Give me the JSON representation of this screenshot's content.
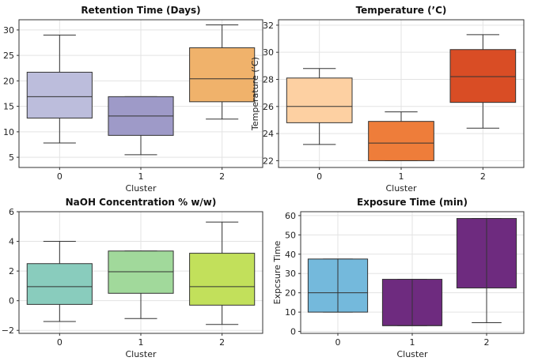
{
  "chart_data": [
    {
      "type": "box",
      "title": "Retention Time (Days)",
      "xlabel": "Cluster",
      "ylabel": "",
      "categories": [
        "0",
        "1",
        "2"
      ],
      "ylim": [
        3,
        32
      ],
      "yticks": [
        5,
        10,
        15,
        20,
        25,
        30
      ],
      "boxes": [
        {
          "whislo": 7.8,
          "q1": 12.7,
          "med": 16.9,
          "q3": 21.7,
          "whishi": 29.0,
          "color": "#bcbddc"
        },
        {
          "whislo": 5.5,
          "q1": 9.3,
          "med": 13.1,
          "q3": 16.9,
          "whishi": 16.9,
          "color": "#9e9ac8"
        },
        {
          "whislo": 12.5,
          "q1": 15.9,
          "med": 20.4,
          "q3": 26.5,
          "whishi": 31.0,
          "color": "#f0b26b"
        }
      ]
    },
    {
      "type": "box",
      "title": "Temperature (’C)",
      "xlabel": "Cluster",
      "ylabel": "Temperature (’C)",
      "categories": [
        "0",
        "1",
        "2"
      ],
      "ylim": [
        21.5,
        32.4
      ],
      "yticks": [
        22,
        24,
        26,
        28,
        30,
        32
      ],
      "boxes": [
        {
          "whislo": 23.2,
          "q1": 24.8,
          "med": 26.0,
          "q3": 28.1,
          "whishi": 28.8,
          "color": "#fdd0a2"
        },
        {
          "whislo": 22.0,
          "q1": 22.0,
          "med": 23.3,
          "q3": 24.9,
          "whishi": 25.6,
          "color": "#ee7d3a"
        },
        {
          "whislo": 24.4,
          "q1": 26.3,
          "med": 28.2,
          "q3": 30.2,
          "whishi": 31.3,
          "color": "#d94d25"
        }
      ]
    },
    {
      "type": "box",
      "title": "NaOH Concentration % w/w)",
      "xlabel": "Cluster",
      "ylabel": "",
      "categories": [
        "0",
        "1",
        "2"
      ],
      "ylim": [
        -2.2,
        6.0
      ],
      "yticks": [
        -2,
        0,
        2,
        4,
        6
      ],
      "boxes": [
        {
          "whislo": -1.4,
          "q1": -0.25,
          "med": 0.95,
          "q3": 2.5,
          "whishi": 4.0,
          "color": "#89ccbd"
        },
        {
          "whislo": -1.2,
          "q1": 0.5,
          "med": 1.95,
          "q3": 3.35,
          "whishi": 3.35,
          "color": "#a1d99b"
        },
        {
          "whislo": -1.6,
          "q1": -0.3,
          "med": 0.95,
          "q3": 3.2,
          "whishi": 5.3,
          "color": "#c2e05b"
        }
      ]
    },
    {
      "type": "box",
      "title": "Exposure Time (min)",
      "xlabel": "Cluster",
      "ylabel": "Expcsure Time",
      "categories": [
        "0",
        "1",
        "2"
      ],
      "ylim": [
        -1,
        62
      ],
      "yticks": [
        0,
        10,
        20,
        30,
        40,
        50,
        60
      ],
      "boxes": [
        {
          "whislo": 10.0,
          "q1": 10.0,
          "med": 20.0,
          "q3": 37.5,
          "whishi": 37.5,
          "color": "#74b9dc"
        },
        {
          "whislo": 3.0,
          "q1": 3.0,
          "med": 3.0,
          "q3": 27.0,
          "whishi": 27.0,
          "color": "#6e2b7f"
        },
        {
          "whislo": 4.5,
          "q1": 22.5,
          "med": 22.5,
          "q3": 58.5,
          "whishi": 58.5,
          "color": "#6e2b7f"
        }
      ]
    }
  ]
}
